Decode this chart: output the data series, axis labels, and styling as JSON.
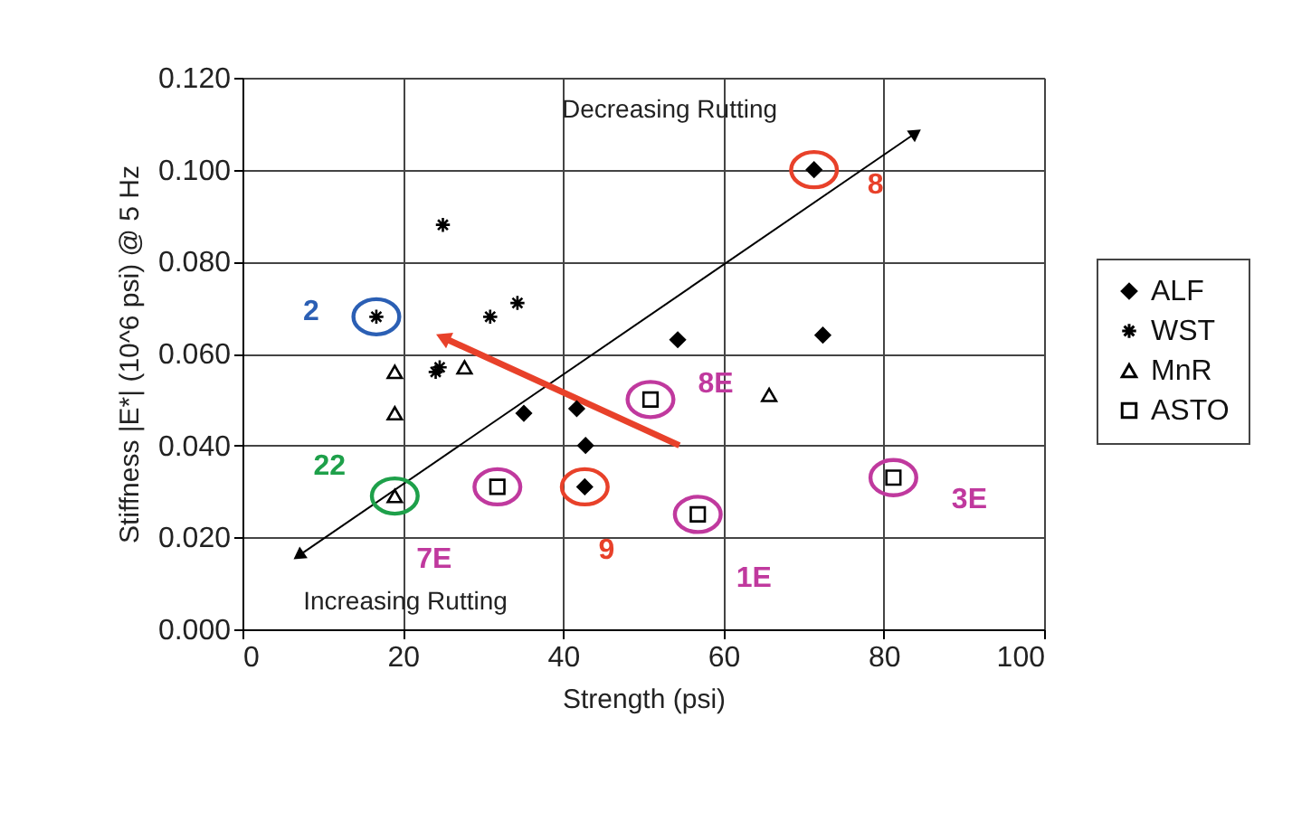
{
  "chart_data": {
    "type": "scatter",
    "xlabel": "Strength (psi)",
    "ylabel": "Stiffness |E*| (10^6 psi) @ 5 Hz",
    "xlim": [
      0,
      100
    ],
    "xticks": [
      0,
      20,
      40,
      60,
      80,
      100
    ],
    "ylim": [
      0,
      0.12
    ],
    "yticks": [
      {
        "value": 0,
        "label": "0.000"
      },
      {
        "value": 0.02,
        "label": "0.020"
      },
      {
        "value": 0.04,
        "label": "0.040"
      },
      {
        "value": 0.06,
        "label": "0.060"
      },
      {
        "value": 0.08,
        "label": "0.080"
      },
      {
        "value": 0.1,
        "label": "0.100"
      },
      {
        "value": 0.12,
        "label": "0.120"
      }
    ],
    "grid": true,
    "legend": "right",
    "series": [
      {
        "name": "ALF",
        "color": "#000000",
        "marker": "diamond",
        "x": [
          35.1,
          41.7,
          42.8,
          42.7,
          54.3,
          71.3,
          72.4
        ],
        "values": [
          0.047,
          0.048,
          0.04,
          0.031,
          0.063,
          0.1,
          0.064
        ]
      },
      {
        "name": "WST",
        "color": "#000000",
        "marker": "cross",
        "x": [
          16.7,
          25.0,
          24.1,
          24.6,
          30.9,
          34.3
        ],
        "values": [
          0.068,
          0.088,
          0.056,
          0.057,
          0.068,
          0.071
        ]
      },
      {
        "name": "MnR",
        "color": "#000000",
        "marker": "triangle",
        "x": [
          19.0,
          19.0,
          27.7,
          19.0,
          65.7
        ],
        "values": [
          0.056,
          0.047,
          0.057,
          0.029,
          0.051
        ]
      },
      {
        "name": "ASTO",
        "color": "#000000",
        "marker": "square",
        "x": [
          31.8,
          50.9,
          56.8,
          81.2
        ],
        "values": [
          0.031,
          0.05,
          0.025,
          0.033
        ]
      },
      {
        "type": "line",
        "color": "#000000",
        "marker": "triangle",
        "x": [
          7,
          84
        ],
        "values": [
          0.016,
          0.108
        ]
      },
      {
        "type": "line",
        "color": "#e8412a",
        "marker": "triangle",
        "x": [
          54.5,
          25.0
        ],
        "values": [
          0.04,
          0.0635
        ]
      }
    ],
    "annotations": [
      {
        "text": "2",
        "x": 16.7,
        "y": 0.068
      },
      {
        "text": "22",
        "x": 19.0,
        "y": 0.029
      },
      {
        "text": "7E",
        "x": 31.8,
        "y": 0.031
      },
      {
        "text": "9",
        "x": 42.7,
        "y": 0.031
      },
      {
        "text": "8",
        "x": 71.3,
        "y": 0.1
      },
      {
        "text": "8E",
        "x": 50.9,
        "y": 0.05
      },
      {
        "text": "1E",
        "x": 56.8,
        "y": 0.025
      },
      {
        "text": "3E",
        "x": 81.2,
        "y": 0.033
      },
      "Decreasing Rutting",
      "Increasing Rutting"
    ]
  }
}
